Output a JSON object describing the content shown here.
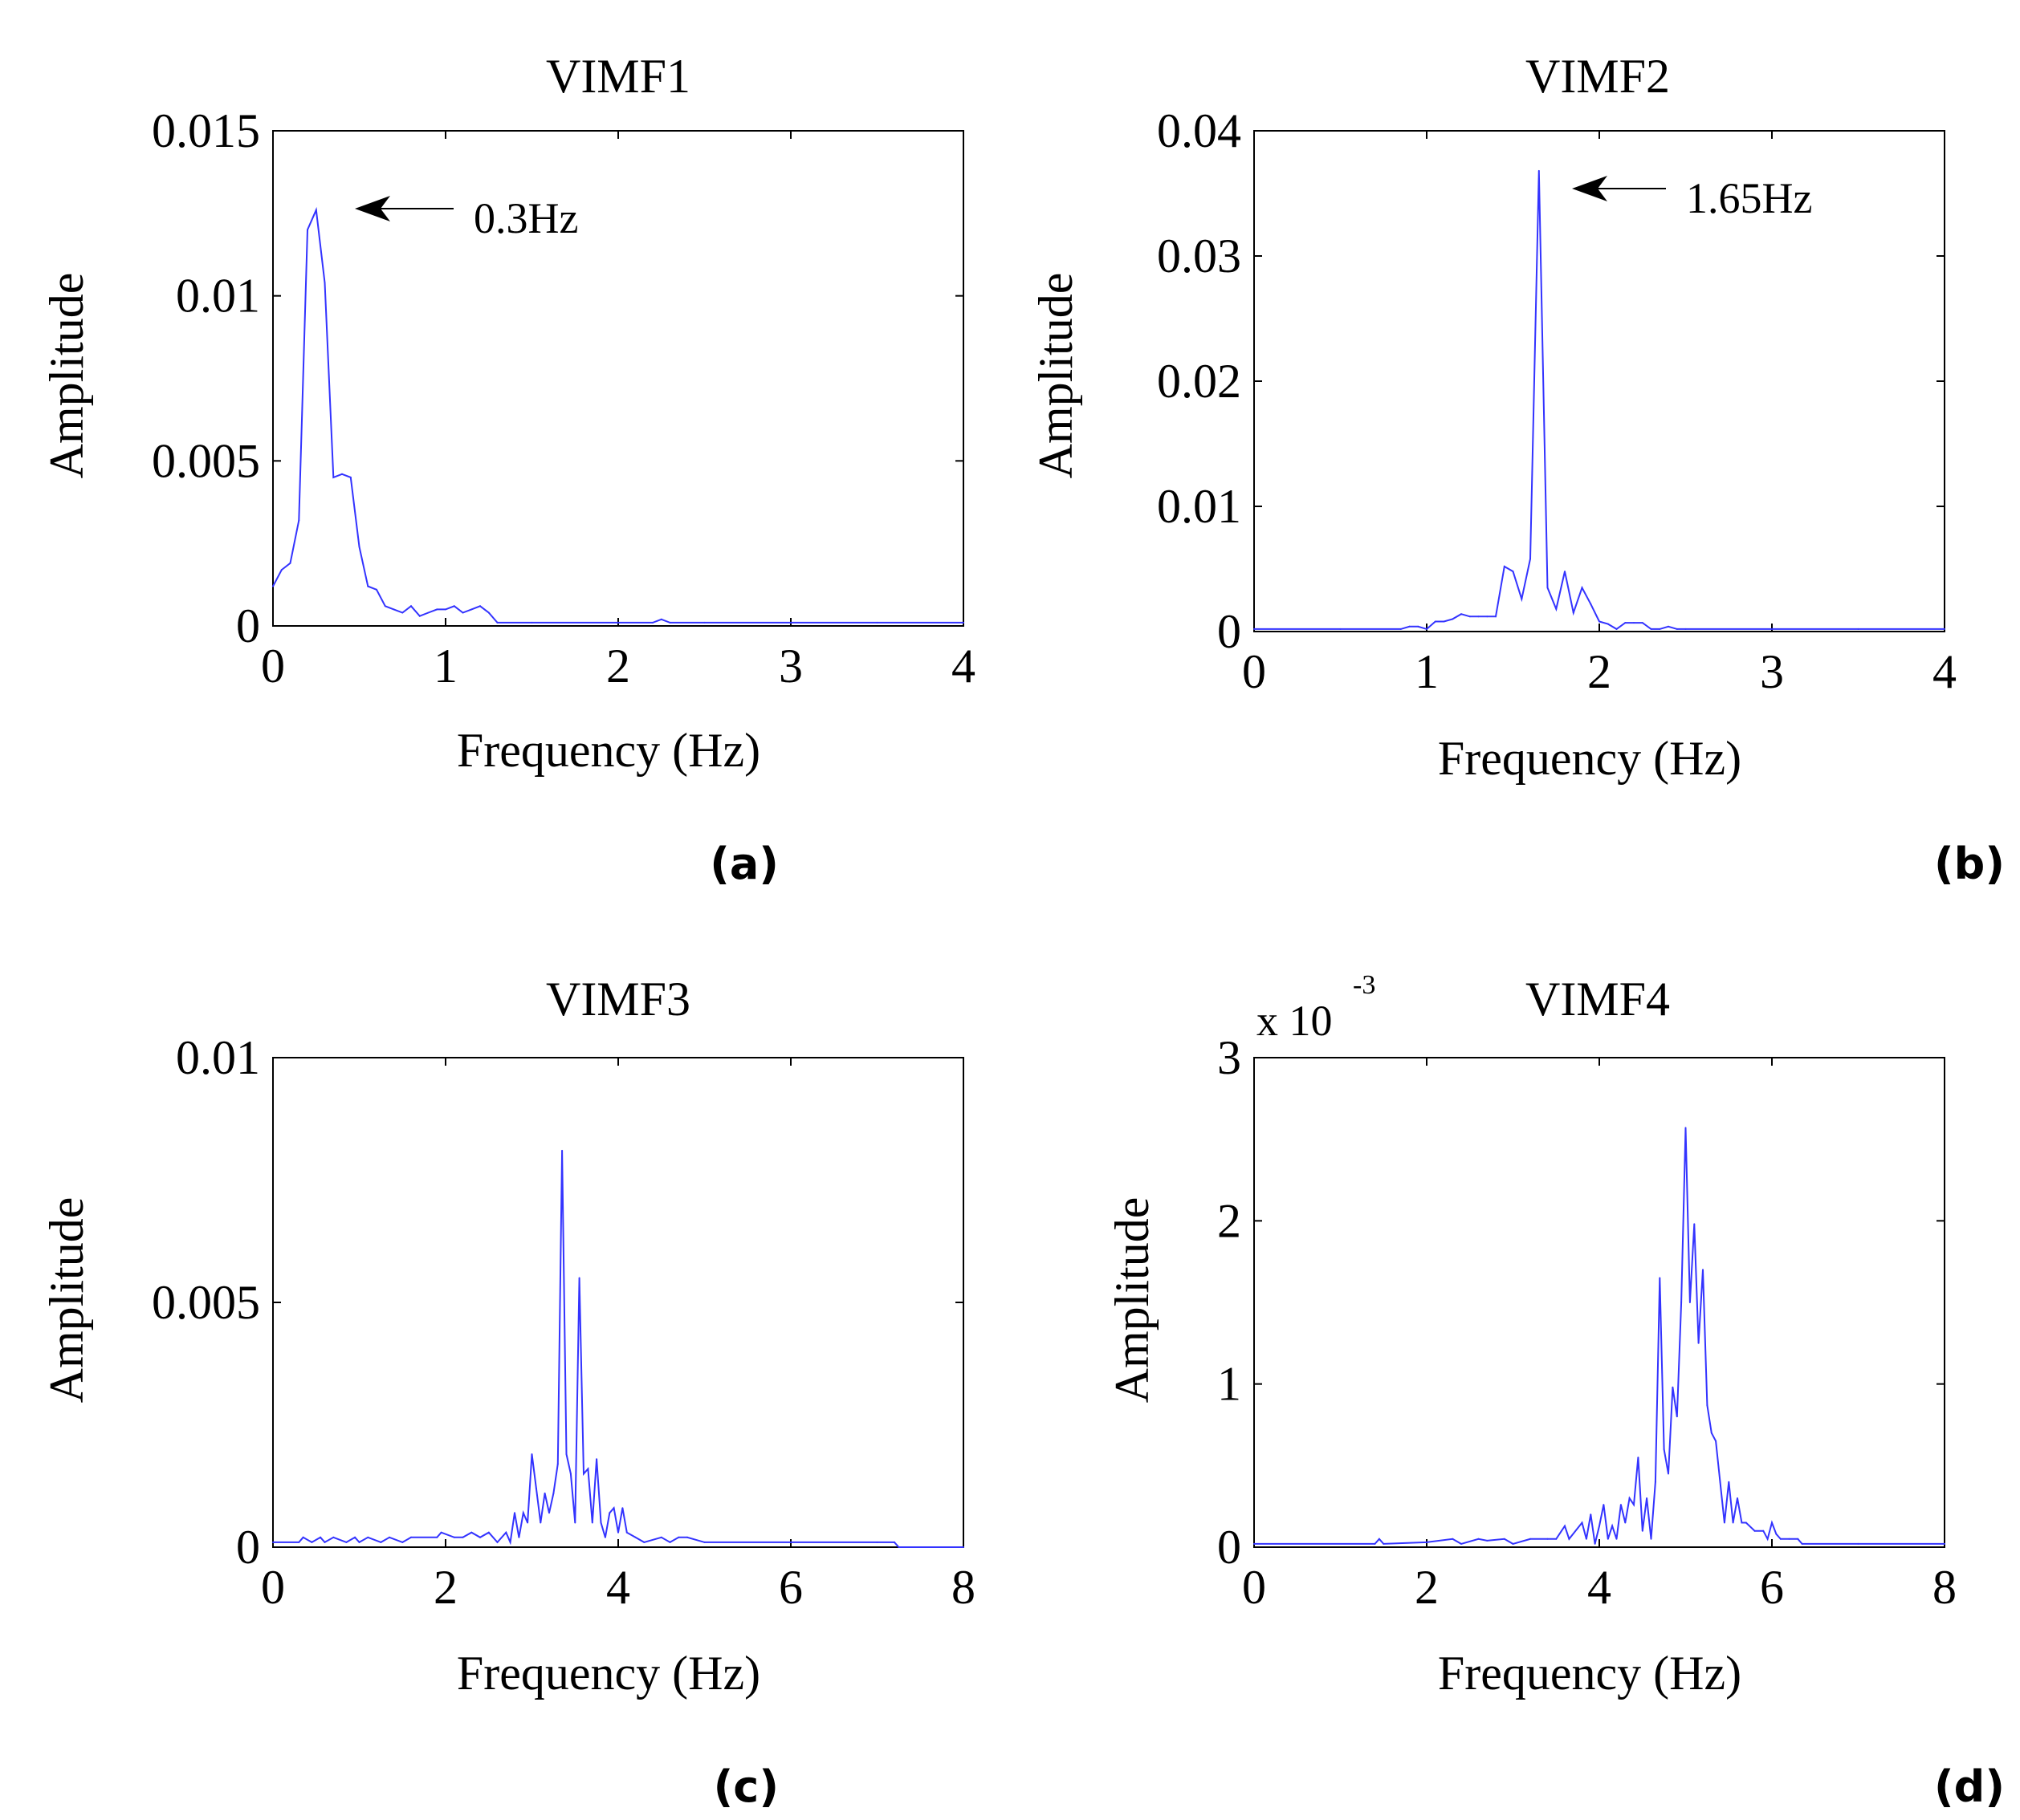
{
  "figure": {
    "line_color": "#3333ff",
    "axis_color": "#000000"
  },
  "chart_data": [
    {
      "type": "line",
      "panel_label": "(a)",
      "title": "VIMF1",
      "xlabel": "Frequency (Hz)",
      "ylabel": "Amplitude",
      "xlim": [
        0,
        4
      ],
      "ylim": [
        0,
        0.015
      ],
      "xticks": [
        0,
        1,
        2,
        3,
        4
      ],
      "xtick_labels": [
        "0",
        "1",
        "2",
        "3",
        "4"
      ],
      "yticks": [
        0,
        0.005,
        0.01,
        0.015
      ],
      "ytick_labels": [
        "0",
        "0.005",
        "0.01",
        "0.015"
      ],
      "exponent_label": "",
      "exponent_power": "",
      "annotation": {
        "text": "0.3Hz",
        "x": 0.3,
        "y": 0.0126
      },
      "x": [
        0.0,
        0.05,
        0.1,
        0.15,
        0.2,
        0.25,
        0.3,
        0.35,
        0.4,
        0.45,
        0.5,
        0.55,
        0.6,
        0.65,
        0.7,
        0.75,
        0.8,
        0.85,
        0.9,
        0.95,
        1.0,
        1.05,
        1.1,
        1.15,
        1.2,
        1.25,
        1.3,
        1.5,
        2.0,
        2.2,
        2.25,
        2.3,
        2.5,
        3.0,
        3.5,
        4.0
      ],
      "y": [
        0.0012,
        0.0017,
        0.0019,
        0.0032,
        0.012,
        0.0126,
        0.0104,
        0.0045,
        0.0046,
        0.0045,
        0.0024,
        0.0012,
        0.0011,
        0.0006,
        0.0005,
        0.0004,
        0.0006,
        0.0003,
        0.0004,
        0.0005,
        0.0005,
        0.0006,
        0.0004,
        0.0005,
        0.0006,
        0.0004,
        0.0001,
        0.0001,
        0.0001,
        0.0001,
        0.0002,
        0.0001,
        0.0001,
        0.0001,
        0.0001,
        0.0001
      ]
    },
    {
      "type": "line",
      "panel_label": "(b)",
      "title": "VIMF2",
      "xlabel": "Frequency (Hz)",
      "ylabel": "Amplitude",
      "xlim": [
        0,
        4
      ],
      "ylim": [
        0,
        0.04
      ],
      "xticks": [
        0,
        1,
        2,
        3,
        4
      ],
      "xtick_labels": [
        "0",
        "1",
        "2",
        "3",
        "4"
      ],
      "yticks": [
        0,
        0.01,
        0.02,
        0.03,
        0.04
      ],
      "ytick_labels": [
        "0",
        "0.01",
        "0.02",
        "0.03",
        "0.04"
      ],
      "exponent_label": "",
      "exponent_power": "",
      "annotation": {
        "text": "1.65Hz",
        "x": 1.65,
        "y": 0.0368
      },
      "x": [
        0.0,
        0.5,
        0.85,
        0.9,
        0.95,
        1.0,
        1.05,
        1.1,
        1.15,
        1.2,
        1.25,
        1.3,
        1.35,
        1.4,
        1.45,
        1.5,
        1.55,
        1.6,
        1.65,
        1.7,
        1.75,
        1.8,
        1.85,
        1.9,
        1.95,
        2.0,
        2.05,
        2.1,
        2.15,
        2.2,
        2.25,
        2.3,
        2.35,
        2.4,
        2.45,
        2.5,
        3.0,
        3.5,
        4.0
      ],
      "y": [
        0.0002,
        0.0002,
        0.0002,
        0.0004,
        0.0004,
        0.0002,
        0.0008,
        0.0008,
        0.001,
        0.0014,
        0.0012,
        0.0012,
        0.0012,
        0.0012,
        0.0052,
        0.0048,
        0.0026,
        0.0058,
        0.0368,
        0.0035,
        0.0018,
        0.0048,
        0.0015,
        0.0035,
        0.0022,
        0.0008,
        0.0006,
        0.0002,
        0.0007,
        0.0007,
        0.0007,
        0.0002,
        0.0002,
        0.0004,
        0.0002,
        0.0002,
        0.0002,
        0.0002,
        0.0002
      ]
    },
    {
      "type": "line",
      "panel_label": "(c)",
      "title": "VIMF3",
      "xlabel": "Frequency (Hz)",
      "ylabel": "Amplitude",
      "xlim": [
        0,
        8
      ],
      "ylim": [
        0,
        0.01
      ],
      "xticks": [
        0,
        2,
        4,
        6,
        8
      ],
      "xtick_labels": [
        "0",
        "2",
        "4",
        "6",
        "8"
      ],
      "yticks": [
        0,
        0.005,
        0.01
      ],
      "ytick_labels": [
        "0",
        "0.005",
        "0.01"
      ],
      "exponent_label": "",
      "exponent_power": "",
      "annotation": null,
      "x": [
        0.0,
        0.3,
        0.35,
        0.45,
        0.55,
        0.6,
        0.7,
        0.85,
        0.95,
        1.0,
        1.1,
        1.25,
        1.35,
        1.5,
        1.6,
        1.9,
        1.95,
        2.1,
        2.2,
        2.3,
        2.4,
        2.5,
        2.6,
        2.7,
        2.75,
        2.8,
        2.85,
        2.9,
        2.95,
        3.0,
        3.05,
        3.1,
        3.15,
        3.2,
        3.25,
        3.3,
        3.35,
        3.4,
        3.45,
        3.5,
        3.55,
        3.6,
        3.65,
        3.7,
        3.75,
        3.8,
        3.85,
        3.9,
        3.95,
        4.0,
        4.05,
        4.1,
        4.2,
        4.3,
        4.5,
        4.6,
        4.7,
        4.8,
        5.0,
        6.0,
        7.0,
        7.2,
        7.25,
        8.0
      ],
      "y": [
        0.0001,
        0.0001,
        0.0002,
        0.0001,
        0.0002,
        0.0001,
        0.0002,
        0.0001,
        0.0002,
        0.0001,
        0.0002,
        0.0001,
        0.0002,
        0.0001,
        0.0002,
        0.0002,
        0.0003,
        0.0002,
        0.0002,
        0.0003,
        0.0002,
        0.0003,
        0.0001,
        0.0003,
        0.0001,
        0.0007,
        0.0002,
        0.0007,
        0.0005,
        0.0019,
        0.0012,
        0.0005,
        0.0011,
        0.0007,
        0.0011,
        0.0017,
        0.0081,
        0.0019,
        0.0015,
        0.0005,
        0.0055,
        0.0015,
        0.0016,
        0.0005,
        0.0018,
        0.0005,
        0.0002,
        0.0007,
        0.0008,
        0.0003,
        0.0008,
        0.0003,
        0.0002,
        0.0001,
        0.0002,
        0.0001,
        0.0002,
        0.0002,
        0.0001,
        0.0001,
        0.0001,
        0.0001,
        0.0,
        0.0
      ]
    },
    {
      "type": "line",
      "panel_label": "(d)",
      "title": "VIMF4",
      "xlabel": "Frequency (Hz)",
      "ylabel": "Amplitude",
      "xlim": [
        0,
        8
      ],
      "ylim": [
        0,
        3
      ],
      "xticks": [
        0,
        2,
        4,
        6,
        8
      ],
      "xtick_labels": [
        "0",
        "2",
        "4",
        "6",
        "8"
      ],
      "yticks": [
        0,
        1,
        2,
        3
      ],
      "ytick_labels": [
        "0",
        "1",
        "2",
        "3"
      ],
      "exponent_label": "x 10",
      "exponent_power": "-3",
      "annotation": null,
      "x": [
        0.0,
        1.4,
        1.45,
        1.5,
        2.0,
        2.3,
        2.4,
        2.6,
        2.7,
        2.9,
        3.0,
        3.2,
        3.4,
        3.5,
        3.6,
        3.65,
        3.8,
        3.85,
        3.9,
        3.95,
        4.0,
        4.05,
        4.1,
        4.15,
        4.2,
        4.25,
        4.3,
        4.35,
        4.4,
        4.45,
        4.5,
        4.55,
        4.6,
        4.65,
        4.7,
        4.75,
        4.8,
        4.85,
        4.9,
        4.95,
        5.0,
        5.05,
        5.1,
        5.15,
        5.2,
        5.25,
        5.3,
        5.35,
        5.4,
        5.45,
        5.5,
        5.55,
        5.6,
        5.65,
        5.7,
        5.8,
        5.9,
        5.95,
        6.0,
        6.05,
        6.1,
        6.2,
        6.3,
        6.35,
        7.0,
        8.0
      ],
      "y": [
        0.02,
        0.02,
        0.05,
        0.02,
        0.03,
        0.05,
        0.02,
        0.05,
        0.04,
        0.05,
        0.02,
        0.05,
        0.05,
        0.05,
        0.13,
        0.05,
        0.15,
        0.05,
        0.2,
        0.02,
        0.13,
        0.26,
        0.05,
        0.13,
        0.05,
        0.26,
        0.15,
        0.3,
        0.26,
        0.55,
        0.1,
        0.3,
        0.05,
        0.4,
        1.65,
        0.6,
        0.45,
        0.98,
        0.8,
        1.5,
        2.57,
        1.5,
        1.98,
        1.25,
        1.7,
        0.87,
        0.7,
        0.65,
        0.4,
        0.15,
        0.4,
        0.15,
        0.3,
        0.15,
        0.15,
        0.1,
        0.1,
        0.05,
        0.15,
        0.08,
        0.05,
        0.05,
        0.05,
        0.02,
        0.02,
        0.02
      ]
    }
  ]
}
